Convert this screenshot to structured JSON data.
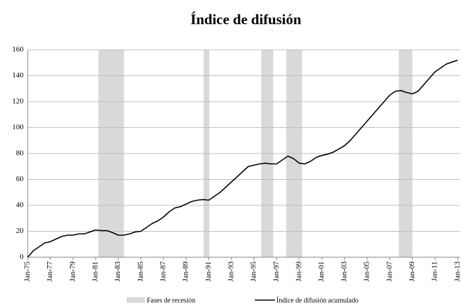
{
  "chart_data": {
    "type": "line",
    "title": "Índice de difusión",
    "xlim": [
      1975,
      2013.2
    ],
    "xticks": [
      {
        "value": 1975,
        "label": "Jan-75"
      },
      {
        "value": 1977,
        "label": "Jan-77"
      },
      {
        "value": 1979,
        "label": "Jan-79"
      },
      {
        "value": 1981,
        "label": "Jan-81"
      },
      {
        "value": 1983,
        "label": "Jan-83"
      },
      {
        "value": 1985,
        "label": "Jan-85"
      },
      {
        "value": 1987,
        "label": "Jan-87"
      },
      {
        "value": 1989,
        "label": "Jan-89"
      },
      {
        "value": 1991,
        "label": "Jan-91"
      },
      {
        "value": 1993,
        "label": "Jan-93"
      },
      {
        "value": 1995,
        "label": "Jan-95"
      },
      {
        "value": 1997,
        "label": "Jan-97"
      },
      {
        "value": 1999,
        "label": "Jan-99"
      },
      {
        "value": 2001,
        "label": "Jan-01"
      },
      {
        "value": 2003,
        "label": "Jan-03"
      },
      {
        "value": 2005,
        "label": "Jan-05"
      },
      {
        "value": 2007,
        "label": "Jan-07"
      },
      {
        "value": 2009,
        "label": "Jan-09"
      },
      {
        "value": 2011,
        "label": "Jan-11"
      },
      {
        "value": 2013,
        "label": "Jan-13"
      }
    ],
    "ylim": [
      0,
      160
    ],
    "yticks": [
      0,
      20,
      40,
      60,
      80,
      100,
      120,
      140,
      160
    ],
    "grid": true,
    "series": [
      {
        "name": "Fases de recesión",
        "color": "#d9d9d9",
        "ranges": [
          [
            1981.25,
            1983.5
          ],
          [
            1990.55,
            1991.05
          ],
          [
            1995.65,
            1996.7
          ],
          [
            1997.85,
            1999.25
          ],
          [
            2007.8,
            2009.0
          ]
        ]
      },
      {
        "name": "Índice de difusión acumulado",
        "color": "#000000",
        "x": [
          1975,
          1975.5,
          1976,
          1976.5,
          1977,
          1977.5,
          1978,
          1978.5,
          1979,
          1979.5,
          1980,
          1980.5,
          1981,
          1981.5,
          1982,
          1982.5,
          1983,
          1983.5,
          1984,
          1984.5,
          1985,
          1985.5,
          1986,
          1986.5,
          1987,
          1987.5,
          1988,
          1988.5,
          1989,
          1989.5,
          1990,
          1990.5,
          1991,
          1991.5,
          1992,
          1992.5,
          1993,
          1993.5,
          1994,
          1994.5,
          1995,
          1995.5,
          1996,
          1996.5,
          1997,
          1997.5,
          1998,
          1998.5,
          1999,
          1999.5,
          2000,
          2000.5,
          2001,
          2001.5,
          2002,
          2002.5,
          2003,
          2003.5,
          2004,
          2004.5,
          2005,
          2005.5,
          2006,
          2006.5,
          2007,
          2007.5,
          2008,
          2008.5,
          2009,
          2009.5,
          2010,
          2010.5,
          2011,
          2011.5,
          2012,
          2012.5,
          2013
        ],
        "values": [
          0,
          5,
          8,
          11,
          12,
          14,
          16,
          17,
          17,
          18,
          18,
          19.5,
          21,
          20.5,
          20.5,
          19,
          17,
          17,
          18,
          19.5,
          20,
          23,
          26,
          28,
          31,
          35,
          38,
          39,
          41,
          43,
          44,
          44.5,
          44,
          47,
          50,
          54,
          58,
          62,
          66,
          70,
          71,
          72,
          72.5,
          72,
          72,
          75,
          78,
          76,
          72.5,
          72,
          74,
          77,
          78.5,
          79.5,
          81,
          83.5,
          86,
          90,
          95,
          100,
          105,
          110,
          115,
          120,
          125,
          128,
          128.5,
          127,
          126,
          128,
          133,
          138,
          143,
          146,
          149,
          150.5,
          152
        ]
      }
    ]
  }
}
